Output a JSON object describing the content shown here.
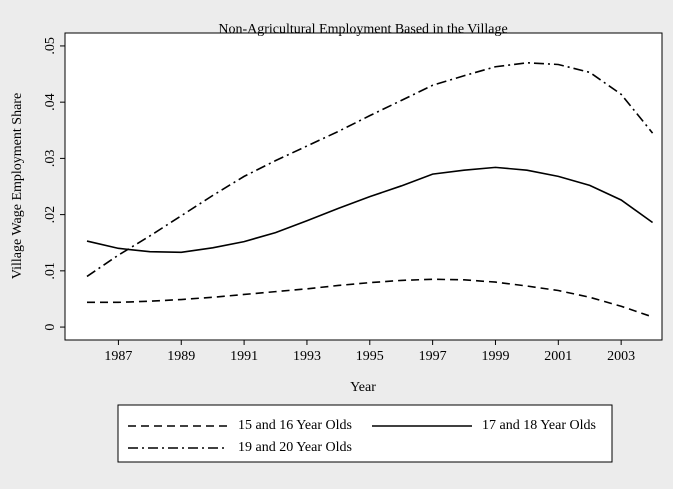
{
  "chart_data": {
    "type": "line",
    "title": "Non-Agricultural Employment Based in the Village",
    "x_label": "Year",
    "y_label": "Village Wage Employment Share",
    "x": [
      1986,
      1987,
      1988,
      1989,
      1990,
      1991,
      1992,
      1993,
      1994,
      1995,
      1996,
      1997,
      1998,
      1999,
      2000,
      2001,
      2002,
      2003,
      2004
    ],
    "series": [
      {
        "name": "15 and 16 Year Olds",
        "color": "#000000",
        "dash": "8,5",
        "values": [
          0.0044,
          0.0044,
          0.0046,
          0.0049,
          0.0053,
          0.0058,
          0.0063,
          0.0068,
          0.0074,
          0.0079,
          0.0083,
          0.0085,
          0.0084,
          0.008,
          0.0073,
          0.0065,
          0.0053,
          0.0037,
          0.0018
        ]
      },
      {
        "name": "17 and 18 Year Olds",
        "color": "#000000",
        "dash": "none",
        "values": [
          0.0153,
          0.014,
          0.0134,
          0.0133,
          0.0141,
          0.0152,
          0.0168,
          0.0189,
          0.0211,
          0.0232,
          0.0251,
          0.0272,
          0.0279,
          0.0284,
          0.0279,
          0.0268,
          0.0252,
          0.0226,
          0.0186
        ]
      },
      {
        "name": "19 and 20 Year Olds",
        "color": "#000000",
        "dash": "10,4,2,4",
        "values": [
          0.009,
          0.0128,
          0.0162,
          0.0198,
          0.0234,
          0.0268,
          0.0296,
          0.0322,
          0.0348,
          0.0376,
          0.0403,
          0.043,
          0.0447,
          0.0463,
          0.047,
          0.0467,
          0.0453,
          0.0414,
          0.0345
        ]
      }
    ],
    "xlim": [
      1985.3,
      2004.3
    ],
    "xticks": [
      1987,
      1989,
      1991,
      1993,
      1995,
      1997,
      1999,
      2001,
      2003
    ],
    "ylim": [
      -0.0023,
      0.0523
    ],
    "yticks": [
      0,
      {
        "value": 0.01,
        "label": ".01"
      },
      {
        "value": 0.02,
        "label": ".02"
      },
      {
        "value": 0.03,
        "label": ".03"
      },
      {
        "value": 0.04,
        "label": ".04"
      },
      {
        "value": 0.05,
        "label": ".05"
      }
    ],
    "grid": false,
    "legend": "bottom"
  }
}
